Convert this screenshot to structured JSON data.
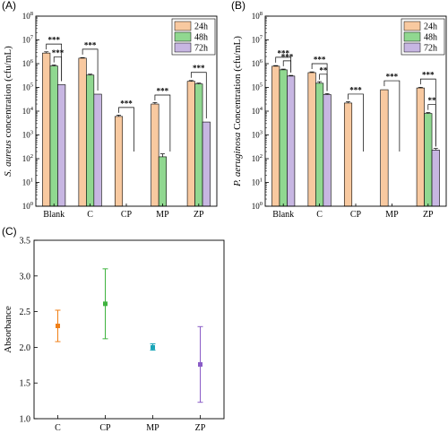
{
  "chart_data": [
    {
      "type": "bar",
      "panel_label": "(A)",
      "categories": [
        "Blank",
        "C",
        "CP",
        "MP",
        "ZP"
      ],
      "ylabel_italic": "S. aureus",
      "ylabel_rest": " concentration (cfu/mL)",
      "xlabel": "",
      "yscale": "log",
      "ylim": [
        1,
        100000000
      ],
      "yticks": [
        "10^0",
        "10^1",
        "10^2",
        "10^3",
        "10^4",
        "10^5",
        "10^6",
        "10^7",
        "10^8"
      ],
      "legend": "top-right",
      "series": [
        {
          "name": "24h",
          "color": "#f8c9a0",
          "values": [
            2800000,
            1700000,
            6000,
            20000,
            180000
          ],
          "errors": [
            350000,
            100000,
            800,
            3000,
            15000
          ]
        },
        {
          "name": "48h",
          "color": "#90d890",
          "values": [
            800000,
            330000,
            null,
            120,
            140000
          ],
          "errors": [
            80000,
            30000,
            null,
            40,
            12000
          ]
        },
        {
          "name": "72h",
          "color": "#c7b6e2",
          "values": [
            130000,
            52000,
            null,
            null,
            3500
          ],
          "errors": [
            null,
            null,
            null,
            null,
            null
          ]
        }
      ],
      "significance": [
        {
          "label": "***",
          "category_from": "Blank",
          "series_from": 0,
          "category_to": "Blank",
          "series_to": 2
        },
        {
          "label": "***",
          "category_from": "Blank",
          "series_from": 1,
          "category_to": "Blank",
          "series_to": 2
        },
        {
          "label": "***",
          "category_from": "C",
          "series_from": 0,
          "category_to": "C",
          "series_to": 2
        },
        {
          "label": "***",
          "category_from": "CP",
          "series_from": 0,
          "category_to": "CP",
          "series_to": 2
        },
        {
          "label": "***",
          "category_from": "MP",
          "series_from": 0,
          "category_to": "MP",
          "series_to": 2
        },
        {
          "label": "***",
          "category_from": "ZP",
          "series_from": 0,
          "category_to": "ZP",
          "series_to": 2
        }
      ]
    },
    {
      "type": "bar",
      "panel_label": "(B)",
      "categories": [
        "Blank",
        "C",
        "CP",
        "MP",
        "ZP"
      ],
      "ylabel_italic": "P. aeruginosa",
      "ylabel_rest": " Concentration (cfu/mL)",
      "xlabel": "",
      "yscale": "log",
      "ylim": [
        1,
        100000000
      ],
      "yticks": [
        "10^0",
        "10^1",
        "10^2",
        "10^3",
        "10^4",
        "10^5",
        "10^6",
        "10^7",
        "10^8"
      ],
      "legend": "top-right",
      "series": [
        {
          "name": "24h",
          "color": "#f8c9a0",
          "values": [
            780000,
            420000,
            22000,
            80000,
            95000
          ],
          "errors": [
            50000,
            30000,
            3000,
            null,
            6000
          ]
        },
        {
          "name": "48h",
          "color": "#90d890",
          "values": [
            550000,
            150000,
            null,
            null,
            8000
          ],
          "errors": [
            40000,
            25000,
            null,
            null,
            800
          ]
        },
        {
          "name": "72h",
          "color": "#c7b6e2",
          "values": [
            300000,
            50000,
            null,
            null,
            230
          ],
          "errors": [
            20000,
            5000,
            null,
            null,
            40
          ]
        }
      ],
      "significance": [
        {
          "label": "***",
          "category_from": "Blank",
          "series_from": 0,
          "category_to": "Blank",
          "series_to": 2
        },
        {
          "label": "***",
          "category_from": "Blank",
          "series_from": 1,
          "category_to": "Blank",
          "series_to": 2
        },
        {
          "label": "***",
          "category_from": "C",
          "series_from": 0,
          "category_to": "C",
          "series_to": 2
        },
        {
          "label": "**",
          "category_from": "C",
          "series_from": 1,
          "category_to": "C",
          "series_to": 2
        },
        {
          "label": "***",
          "category_from": "CP",
          "series_from": 0,
          "category_to": "CP",
          "series_to": 2
        },
        {
          "label": "***",
          "category_from": "MP",
          "series_from": 0,
          "category_to": "MP",
          "series_to": 2
        },
        {
          "label": "***",
          "category_from": "ZP",
          "series_from": 0,
          "category_to": "ZP",
          "series_to": 2
        },
        {
          "label": "**",
          "category_from": "ZP",
          "series_from": 1,
          "category_to": "ZP",
          "series_to": 2
        }
      ]
    },
    {
      "type": "scatter",
      "panel_label": "(C)",
      "categories": [
        "C",
        "CP",
        "MP",
        "ZP"
      ],
      "ylabel": "Absorbance",
      "xlabel": "",
      "ylim": [
        1.0,
        3.5
      ],
      "yticks": [
        "1.0",
        "1.5",
        "2.0",
        "2.5",
        "3.0",
        "3.5"
      ],
      "grid": false,
      "points": [
        {
          "category": "C",
          "value": 2.3,
          "low": 2.08,
          "high": 2.52,
          "color": "#f07f16"
        },
        {
          "category": "CP",
          "value": 2.61,
          "low": 2.12,
          "high": 3.1,
          "color": "#3fb33f"
        },
        {
          "category": "MP",
          "value": 2.0,
          "low": 1.96,
          "high": 2.05,
          "color": "#1aa5b8"
        },
        {
          "category": "ZP",
          "value": 1.76,
          "low": 1.23,
          "high": 2.29,
          "color": "#8a5cc7"
        }
      ]
    }
  ]
}
